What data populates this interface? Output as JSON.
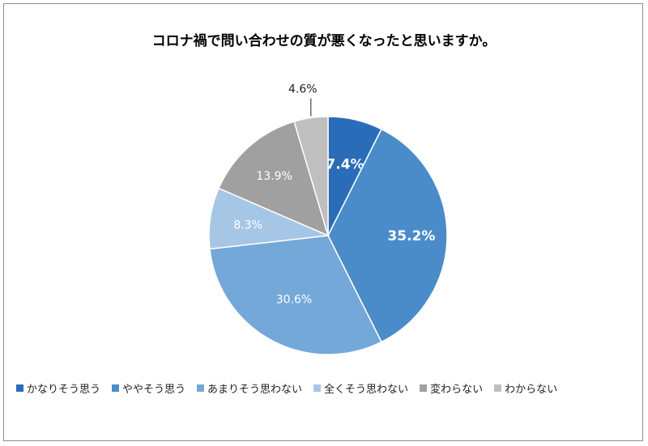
{
  "chart_data": {
    "type": "pie",
    "title": "コロナ禍で問い合わせの質が悪くなったと思いますか。",
    "categories": [
      "かなりそう思う",
      "ややそう思う",
      "あまりそう思わない",
      "全くそう思わない",
      "変わらない",
      "わからない"
    ],
    "values": [
      7.4,
      35.2,
      30.6,
      8.3,
      13.9,
      4.6
    ],
    "labels": [
      "7.4%",
      "35.2%",
      "30.6%",
      "8.3%",
      "13.9%",
      "4.6%"
    ],
    "colors": [
      "#2b6cb8",
      "#4a8cca",
      "#74a8d8",
      "#a6c6e6",
      "#a0a0a0",
      "#bfbfbf"
    ],
    "label_colors": [
      "#ffffff",
      "#ffffff",
      "#ffffff",
      "#ffffff",
      "#ffffff",
      "#222222"
    ],
    "bold_labels": [
      true,
      true,
      false,
      false,
      false,
      false
    ],
    "legend_position": "bottom",
    "start_angle_deg": 0,
    "direction": "clockwise"
  }
}
